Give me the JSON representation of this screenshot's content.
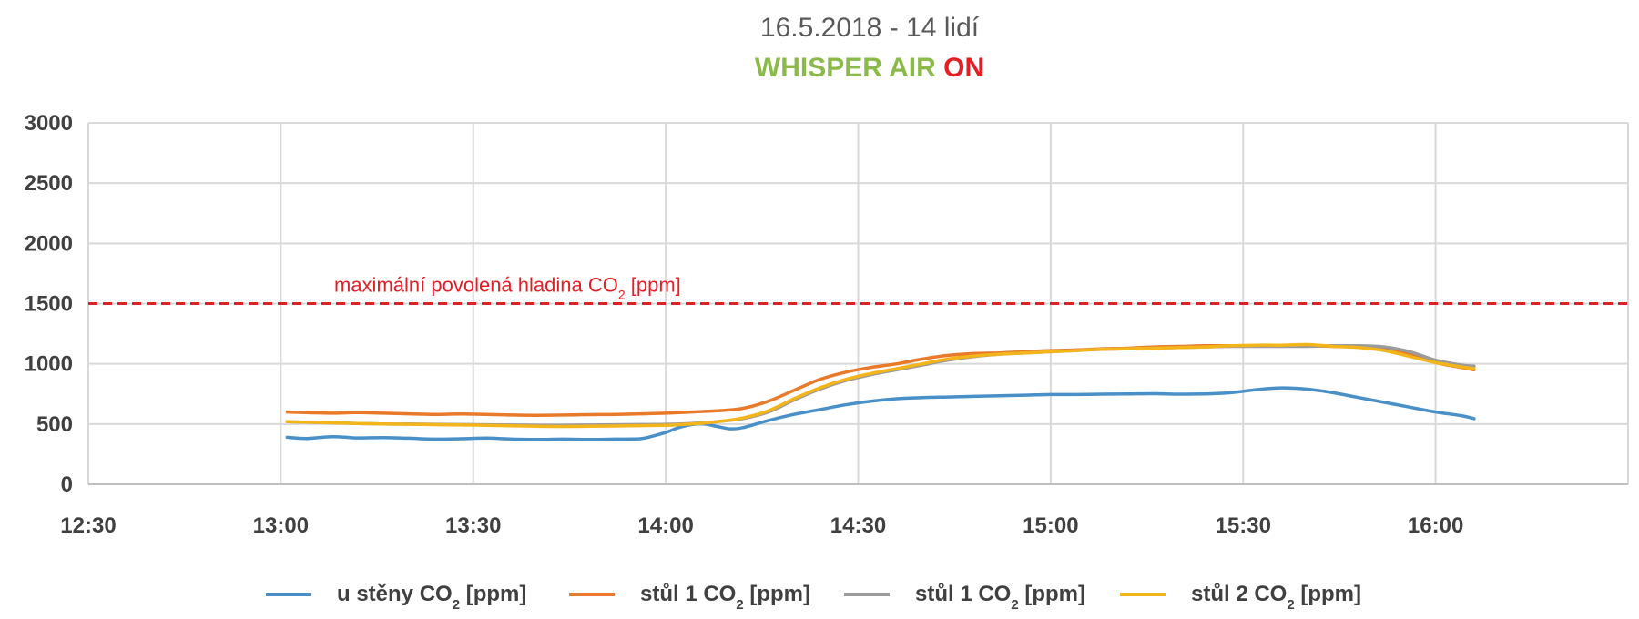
{
  "chart_data": {
    "type": "line",
    "title": "16.5.2018 - 14 lidí",
    "subtitle": {
      "part1": "WHISPER AIR",
      "part2": "ON",
      "part1_color": "#8cba4a",
      "part2_color": "#e31e24"
    },
    "ylim": [
      0,
      3000
    ],
    "yticks": [
      {
        "value": 0,
        "label": "0"
      },
      {
        "value": 500,
        "label": "500"
      },
      {
        "value": 1000,
        "label": "1000"
      },
      {
        "value": 1500,
        "label": "1500",
        "color": "#e31e24"
      },
      {
        "value": 2000,
        "label": "2000"
      },
      {
        "value": 2500,
        "label": "2500"
      },
      {
        "value": 3000,
        "label": "3000"
      }
    ],
    "xlim": [
      750,
      990
    ],
    "xticks": [
      {
        "value": 750,
        "label": "12:30"
      },
      {
        "value": 780,
        "label": "13:00"
      },
      {
        "value": 810,
        "label": "13:30"
      },
      {
        "value": 840,
        "label": "14:00"
      },
      {
        "value": 870,
        "label": "14:30"
      },
      {
        "value": 900,
        "label": "15:00"
      },
      {
        "value": 930,
        "label": "15:30"
      },
      {
        "value": 960,
        "label": "16:00"
      }
    ],
    "grid": true,
    "threshold": {
      "value": 1500,
      "label_main": "maximální povolená hladina CO",
      "label_sub": "2",
      "label_tail": " [ppm]",
      "color": "#e31e24"
    },
    "legend_position": "bottom",
    "series": [
      {
        "name_main": "u stěny CO",
        "name_sub": "2",
        "name_tail": " [ppm]",
        "color": "#4a90c8",
        "points": [
          [
            781,
            390
          ],
          [
            784,
            380
          ],
          [
            788,
            395
          ],
          [
            792,
            385
          ],
          [
            796,
            388
          ],
          [
            800,
            382
          ],
          [
            804,
            375
          ],
          [
            808,
            378
          ],
          [
            812,
            383
          ],
          [
            816,
            375
          ],
          [
            820,
            372
          ],
          [
            824,
            375
          ],
          [
            828,
            372
          ],
          [
            832,
            375
          ],
          [
            836,
            378
          ],
          [
            838,
            400
          ],
          [
            840,
            430
          ],
          [
            842,
            470
          ],
          [
            844,
            495
          ],
          [
            846,
            500
          ],
          [
            848,
            480
          ],
          [
            850,
            460
          ],
          [
            852,
            470
          ],
          [
            856,
            530
          ],
          [
            860,
            580
          ],
          [
            864,
            620
          ],
          [
            868,
            660
          ],
          [
            872,
            690
          ],
          [
            876,
            710
          ],
          [
            880,
            720
          ],
          [
            884,
            725
          ],
          [
            888,
            730
          ],
          [
            892,
            735
          ],
          [
            896,
            740
          ],
          [
            900,
            745
          ],
          [
            904,
            745
          ],
          [
            908,
            748
          ],
          [
            912,
            750
          ],
          [
            916,
            752
          ],
          [
            920,
            748
          ],
          [
            924,
            750
          ],
          [
            928,
            760
          ],
          [
            932,
            785
          ],
          [
            936,
            800
          ],
          [
            940,
            790
          ],
          [
            944,
            760
          ],
          [
            948,
            720
          ],
          [
            952,
            680
          ],
          [
            956,
            640
          ],
          [
            960,
            600
          ],
          [
            964,
            570
          ],
          [
            966,
            545
          ]
        ]
      },
      {
        "name_main": "stůl 1 CO",
        "name_sub": "2",
        "name_tail": " [ppm]",
        "color": "#e87a2a",
        "points": [
          [
            781,
            600
          ],
          [
            784,
            595
          ],
          [
            788,
            590
          ],
          [
            792,
            595
          ],
          [
            796,
            590
          ],
          [
            800,
            585
          ],
          [
            804,
            580
          ],
          [
            808,
            583
          ],
          [
            812,
            580
          ],
          [
            816,
            575
          ],
          [
            820,
            573
          ],
          [
            824,
            575
          ],
          [
            828,
            578
          ],
          [
            832,
            580
          ],
          [
            836,
            585
          ],
          [
            840,
            590
          ],
          [
            844,
            600
          ],
          [
            848,
            610
          ],
          [
            852,
            630
          ],
          [
            856,
            690
          ],
          [
            860,
            780
          ],
          [
            864,
            870
          ],
          [
            868,
            930
          ],
          [
            872,
            970
          ],
          [
            876,
            1000
          ],
          [
            880,
            1040
          ],
          [
            884,
            1070
          ],
          [
            888,
            1085
          ],
          [
            892,
            1090
          ],
          [
            896,
            1100
          ],
          [
            900,
            1110
          ],
          [
            904,
            1115
          ],
          [
            908,
            1125
          ],
          [
            912,
            1130
          ],
          [
            916,
            1140
          ],
          [
            920,
            1145
          ],
          [
            924,
            1150
          ],
          [
            928,
            1150
          ],
          [
            932,
            1150
          ],
          [
            936,
            1155
          ],
          [
            940,
            1150
          ],
          [
            944,
            1145
          ],
          [
            948,
            1140
          ],
          [
            952,
            1120
          ],
          [
            956,
            1080
          ],
          [
            960,
            1010
          ],
          [
            964,
            970
          ],
          [
            966,
            950
          ]
        ]
      },
      {
        "name_main": "stůl 1 CO",
        "name_sub": "2",
        "name_tail": " [ppm]",
        "color": "#9b9b9b",
        "points": [
          [
            781,
            520
          ],
          [
            784,
            515
          ],
          [
            788,
            510
          ],
          [
            792,
            505
          ],
          [
            796,
            500
          ],
          [
            800,
            500
          ],
          [
            804,
            498
          ],
          [
            808,
            496
          ],
          [
            812,
            494
          ],
          [
            816,
            492
          ],
          [
            820,
            490
          ],
          [
            824,
            490
          ],
          [
            828,
            492
          ],
          [
            832,
            494
          ],
          [
            836,
            496
          ],
          [
            840,
            498
          ],
          [
            844,
            505
          ],
          [
            848,
            520
          ],
          [
            852,
            545
          ],
          [
            856,
            600
          ],
          [
            860,
            700
          ],
          [
            864,
            790
          ],
          [
            868,
            860
          ],
          [
            872,
            910
          ],
          [
            876,
            950
          ],
          [
            880,
            990
          ],
          [
            884,
            1030
          ],
          [
            888,
            1060
          ],
          [
            892,
            1080
          ],
          [
            896,
            1090
          ],
          [
            900,
            1100
          ],
          [
            904,
            1110
          ],
          [
            908,
            1120
          ],
          [
            912,
            1125
          ],
          [
            916,
            1130
          ],
          [
            920,
            1135
          ],
          [
            924,
            1140
          ],
          [
            928,
            1145
          ],
          [
            932,
            1145
          ],
          [
            936,
            1145
          ],
          [
            940,
            1145
          ],
          [
            944,
            1150
          ],
          [
            948,
            1150
          ],
          [
            952,
            1140
          ],
          [
            956,
            1100
          ],
          [
            960,
            1030
          ],
          [
            964,
            990
          ],
          [
            966,
            980
          ]
        ]
      },
      {
        "name_main": "stůl 2 CO",
        "name_sub": "2",
        "name_tail": " [ppm]",
        "color": "#f4b51a",
        "points": [
          [
            781,
            520
          ],
          [
            784,
            515
          ],
          [
            788,
            510
          ],
          [
            792,
            505
          ],
          [
            796,
            500
          ],
          [
            800,
            498
          ],
          [
            804,
            495
          ],
          [
            808,
            493
          ],
          [
            812,
            490
          ],
          [
            816,
            486
          ],
          [
            820,
            482
          ],
          [
            824,
            480
          ],
          [
            828,
            482
          ],
          [
            832,
            484
          ],
          [
            836,
            487
          ],
          [
            840,
            490
          ],
          [
            844,
            500
          ],
          [
            848,
            520
          ],
          [
            852,
            550
          ],
          [
            856,
            610
          ],
          [
            860,
            710
          ],
          [
            864,
            800
          ],
          [
            868,
            870
          ],
          [
            872,
            920
          ],
          [
            876,
            960
          ],
          [
            880,
            1000
          ],
          [
            884,
            1040
          ],
          [
            888,
            1065
          ],
          [
            892,
            1080
          ],
          [
            896,
            1090
          ],
          [
            900,
            1100
          ],
          [
            904,
            1110
          ],
          [
            908,
            1120
          ],
          [
            912,
            1125
          ],
          [
            916,
            1130
          ],
          [
            920,
            1135
          ],
          [
            924,
            1140
          ],
          [
            928,
            1150
          ],
          [
            932,
            1155
          ],
          [
            936,
            1155
          ],
          [
            940,
            1160
          ],
          [
            944,
            1145
          ],
          [
            948,
            1135
          ],
          [
            952,
            1110
          ],
          [
            956,
            1060
          ],
          [
            960,
            1010
          ],
          [
            964,
            975
          ],
          [
            966,
            960
          ]
        ]
      }
    ]
  }
}
